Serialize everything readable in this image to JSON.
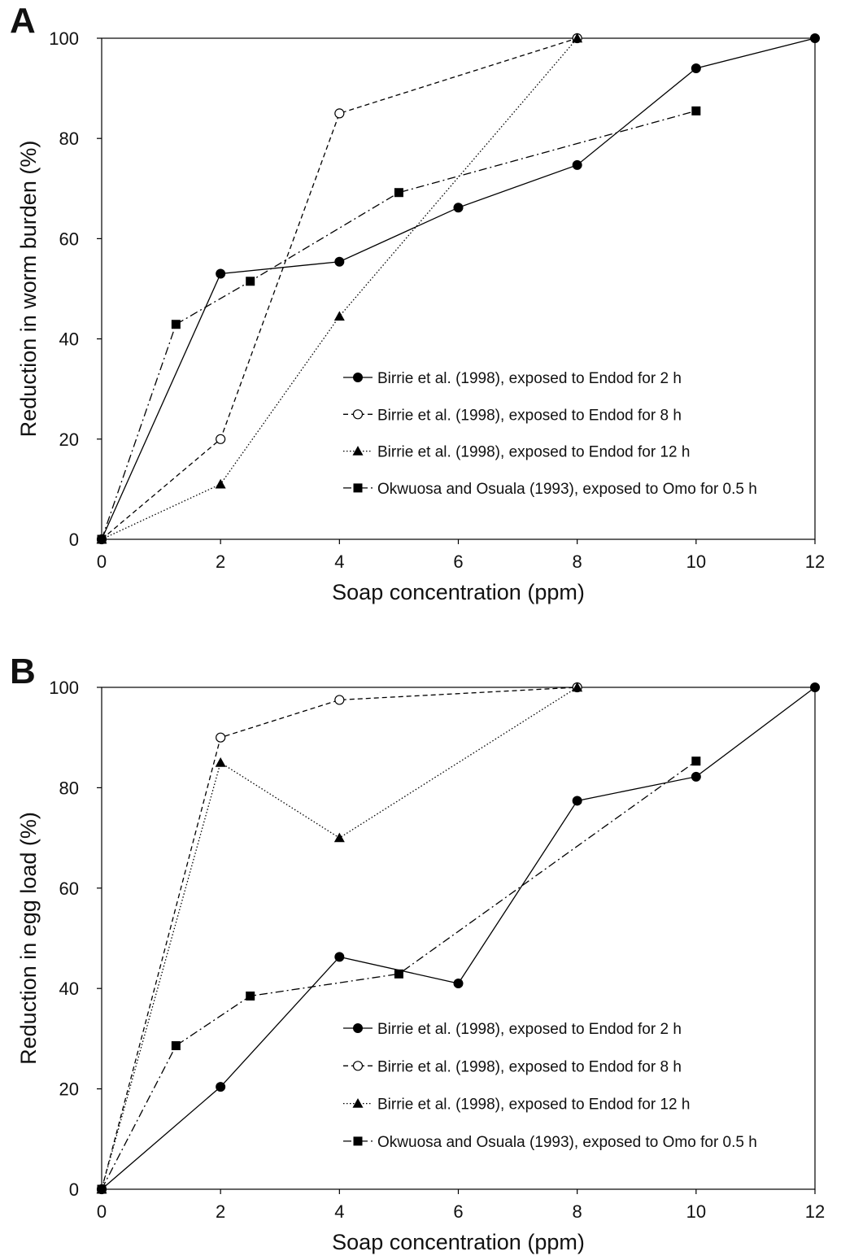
{
  "chart_data": [
    {
      "type": "line",
      "panel": "A",
      "title": "",
      "xlabel": "Soap concentration (ppm)",
      "ylabel": "Reduction in worm burden (%)",
      "xlim": [
        0,
        12
      ],
      "ylim": [
        0,
        100
      ],
      "xticks": [
        0,
        2,
        4,
        6,
        8,
        10,
        12
      ],
      "yticks": [
        0,
        20,
        40,
        60,
        80,
        100
      ],
      "grid": false,
      "legend_position": "bottom-right",
      "series": [
        {
          "name": "Birrie et al. (1998), exposed to Endod for 2 h",
          "marker": "filled-circle",
          "line": "solid",
          "x": [
            0,
            2,
            4,
            6,
            8,
            10,
            12
          ],
          "y": [
            0,
            53,
            55.4,
            66.2,
            74.7,
            94,
            100
          ]
        },
        {
          "name": "Birrie et al. (1998), exposed to Endod for 8 h",
          "marker": "open-circle",
          "line": "dashed",
          "x": [
            0,
            2,
            4,
            8
          ],
          "y": [
            0,
            20,
            85,
            100
          ]
        },
        {
          "name": "Birrie et al. (1998), exposed to Endod for 12 h",
          "marker": "filled-triangle",
          "line": "dotted",
          "x": [
            0,
            2,
            4,
            8
          ],
          "y": [
            0,
            11,
            44.5,
            100
          ]
        },
        {
          "name": "Okwuosa and Osuala (1993), exposed to Omo for 0.5 h",
          "marker": "filled-square",
          "line": "dash-dot",
          "x": [
            0,
            1.25,
            2.5,
            5,
            10
          ],
          "y": [
            0,
            42.9,
            51.5,
            69.2,
            85.5
          ]
        }
      ]
    },
    {
      "type": "line",
      "panel": "B",
      "title": "",
      "xlabel": "Soap concentration (ppm)",
      "ylabel": "Reduction in egg load (%)",
      "xlim": [
        0,
        12
      ],
      "ylim": [
        0,
        100
      ],
      "xticks": [
        0,
        2,
        4,
        6,
        8,
        10,
        12
      ],
      "yticks": [
        0,
        20,
        40,
        60,
        80,
        100
      ],
      "grid": false,
      "legend_position": "bottom-right",
      "series": [
        {
          "name": "Birrie et al. (1998), exposed to Endod for 2 h",
          "marker": "filled-circle",
          "line": "solid",
          "x": [
            0,
            2,
            4,
            6,
            8,
            10,
            12
          ],
          "y": [
            0,
            20.4,
            46.3,
            41,
            77.4,
            82.2,
            100
          ]
        },
        {
          "name": "Birrie et al. (1998), exposed to Endod for 8 h",
          "marker": "open-circle",
          "line": "dashed",
          "x": [
            0,
            2,
            4,
            8
          ],
          "y": [
            0,
            90,
            97.5,
            100
          ]
        },
        {
          "name": "Birrie et al. (1998), exposed to Endod for 12 h",
          "marker": "filled-triangle",
          "line": "dotted",
          "x": [
            0,
            2,
            4,
            8
          ],
          "y": [
            0,
            85,
            70,
            100
          ]
        },
        {
          "name": "Okwuosa and Osuala (1993), exposed to Omo for 0.5 h",
          "marker": "filled-square",
          "line": "dash-dot",
          "x": [
            0,
            1.25,
            2.5,
            5,
            10
          ],
          "y": [
            0,
            28.6,
            38.5,
            42.9,
            85.3
          ]
        }
      ]
    }
  ]
}
